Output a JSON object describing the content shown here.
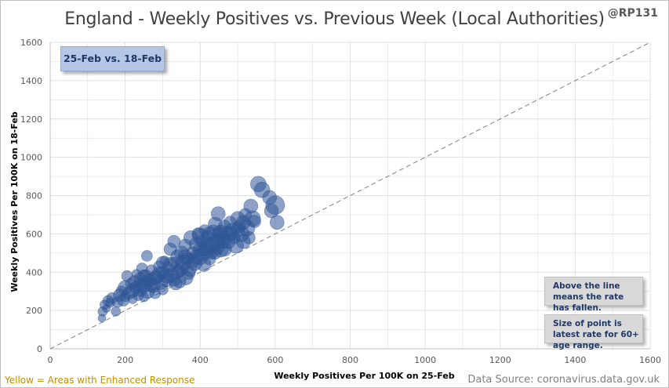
{
  "header": {
    "title": "England - Weekly Positives vs. Previous Week (Local Authorities)",
    "handle": "@RP131"
  },
  "labels": {
    "date_box": "25-Feb vs. 18-Feb",
    "note_above_line": "Above the line means the rate has fallen.",
    "note_size": "Size of point is latest rate for 60+ age range.",
    "footer_left": "Yellow = Areas with Enhanced Response",
    "footer_right": "Data Source: coronavirus.data.gov.uk"
  },
  "colors": {
    "point_fill": "#2f5597",
    "gridline": "#e0e0e0",
    "reference_line": "#808080",
    "footer_left_text": "#bf9000"
  },
  "chart_data": {
    "type": "scatter",
    "title": "England - Weekly Positives vs. Previous Week (Local Authorities)",
    "xlabel": "Weekly Positives Per 100K on 25-Feb",
    "ylabel": "Weekly Positives Per 100K on 18-Feb",
    "xlim": [
      0,
      1600
    ],
    "ylim": [
      0,
      1600
    ],
    "x_ticks": [
      "0",
      "200",
      "400",
      "600",
      "800",
      "1000",
      "1200",
      "1400",
      "1600"
    ],
    "y_ticks": [
      "0",
      "200",
      "400",
      "600",
      "800",
      "1000",
      "1200",
      "1400",
      "1600"
    ],
    "grid": true,
    "reference_line": {
      "style": "dashed",
      "from": [
        0,
        0
      ],
      "to": [
        1600,
        1600
      ]
    },
    "series": [
      {
        "points": [
          [
            138,
            160
          ],
          [
            140,
            195
          ],
          [
            145,
            230
          ],
          [
            150,
            210
          ],
          [
            155,
            250
          ],
          [
            160,
            240
          ],
          [
            165,
            265
          ],
          [
            175,
            195
          ],
          [
            180,
            245
          ],
          [
            185,
            280
          ],
          [
            190,
            300
          ],
          [
            195,
            255
          ],
          [
            200,
            270
          ],
          [
            200,
            320
          ],
          [
            205,
            380
          ],
          [
            210,
            290
          ],
          [
            215,
            340
          ],
          [
            220,
            260
          ],
          [
            220,
            305
          ],
          [
            225,
            350
          ],
          [
            230,
            390
          ],
          [
            235,
            280
          ],
          [
            240,
            310
          ],
          [
            240,
            365
          ],
          [
            245,
            420
          ],
          [
            250,
            330
          ],
          [
            250,
            270
          ],
          [
            255,
            380
          ],
          [
            258,
            485
          ],
          [
            260,
            300
          ],
          [
            265,
            355
          ],
          [
            270,
            410
          ],
          [
            275,
            330
          ],
          [
            280,
            290
          ],
          [
            285,
            375
          ],
          [
            290,
            430
          ],
          [
            295,
            345
          ],
          [
            300,
            400
          ],
          [
            300,
            310
          ],
          [
            305,
            460
          ],
          [
            310,
            360
          ],
          [
            315,
            420
          ],
          [
            320,
            520
          ],
          [
            325,
            385
          ],
          [
            330,
            450
          ],
          [
            330,
            560
          ],
          [
            335,
            340
          ],
          [
            340,
            480
          ],
          [
            345,
            410
          ],
          [
            350,
            500
          ],
          [
            355,
            450
          ],
          [
            360,
            540
          ],
          [
            362,
            370
          ],
          [
            365,
            470
          ],
          [
            370,
            420
          ],
          [
            375,
            580
          ],
          [
            380,
            500
          ],
          [
            385,
            450
          ],
          [
            390,
            545
          ],
          [
            395,
            600
          ],
          [
            400,
            480
          ],
          [
            400,
            520
          ],
          [
            405,
            560
          ],
          [
            410,
            440
          ],
          [
            412,
            620
          ],
          [
            415,
            510
          ],
          [
            420,
            580
          ],
          [
            425,
            470
          ],
          [
            430,
            540
          ],
          [
            435,
            610
          ],
          [
            440,
            500
          ],
          [
            440,
            650
          ],
          [
            445,
            560
          ],
          [
            450,
            600
          ],
          [
            455,
            520
          ],
          [
            460,
            580
          ],
          [
            465,
            640
          ],
          [
            470,
            600
          ],
          [
            475,
            560
          ],
          [
            480,
            660
          ],
          [
            485,
            620
          ],
          [
            490,
            580
          ],
          [
            495,
            540
          ],
          [
            500,
            680
          ],
          [
            505,
            640
          ],
          [
            510,
            600
          ],
          [
            515,
            660
          ],
          [
            520,
            700
          ],
          [
            525,
            630
          ],
          [
            530,
            580
          ],
          [
            535,
            745
          ],
          [
            540,
            680
          ],
          [
            555,
            860
          ],
          [
            565,
            830
          ],
          [
            590,
            720
          ],
          [
            600,
            750
          ],
          [
            605,
            660
          ],
          [
            585,
            790
          ],
          [
            448,
            705
          ],
          [
            545,
            665
          ],
          [
            460,
            560
          ],
          [
            445,
            530
          ],
          [
            455,
            610
          ],
          [
            430,
            500
          ],
          [
            425,
            600
          ],
          [
            320,
            440
          ],
          [
            300,
            450
          ],
          [
            280,
            370
          ],
          [
            260,
            360
          ],
          [
            240,
            330
          ],
          [
            230,
            320
          ],
          [
            250,
            380
          ],
          [
            270,
            330
          ],
          [
            290,
            390
          ],
          [
            310,
            380
          ],
          [
            350,
            420
          ],
          [
            390,
            480
          ],
          [
            410,
            520
          ],
          [
            420,
            540
          ],
          [
            465,
            520
          ],
          [
            480,
            600
          ],
          [
            500,
            620
          ],
          [
            515,
            560
          ],
          [
            340,
            400
          ],
          [
            360,
            480
          ],
          [
            380,
            460
          ],
          [
            400,
            590
          ],
          [
            330,
            360
          ],
          [
            345,
            350
          ],
          [
            370,
            395
          ]
        ],
        "sizes": [
          5,
          6,
          6,
          5,
          7,
          6,
          7,
          6,
          7,
          8,
          7,
          8,
          6,
          9,
          7,
          8,
          7,
          6,
          9,
          8,
          6,
          7,
          9,
          8,
          7,
          9,
          6,
          8,
          7,
          9,
          8,
          7,
          9,
          7,
          8,
          7,
          9,
          8,
          7,
          6,
          9,
          8,
          8,
          9,
          7,
          8,
          8,
          9,
          8,
          9,
          10,
          8,
          9,
          8,
          10,
          9,
          8,
          10,
          9,
          8,
          10,
          9,
          8,
          9,
          7,
          10,
          9,
          8,
          10,
          9,
          8,
          9,
          10,
          9,
          10,
          9,
          8,
          10,
          9,
          8,
          9,
          8,
          10,
          9,
          8,
          10,
          9,
          8,
          10,
          8,
          9,
          10,
          10,
          10,
          9,
          12,
          9,
          9,
          9,
          8,
          9,
          9,
          9,
          8,
          9,
          9,
          8,
          9,
          8,
          9,
          8,
          8,
          8,
          9,
          9,
          9,
          9,
          9,
          10,
          9,
          9,
          9,
          9,
          8,
          9,
          9,
          10,
          8,
          8,
          8
        ]
      }
    ]
  }
}
